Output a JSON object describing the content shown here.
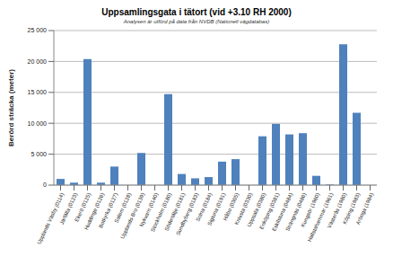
{
  "chart_data": {
    "type": "bar",
    "title": "Uppsamlingsgata i tätort (vid +3.10 RH 2000)",
    "subtitle": "Analysen är utförd på data från NVDB (Nationell vägdatabas)",
    "y_label": "Berörd sträcka (meter)",
    "categories": [
      "Upplands Väsby (0114)",
      "Järfälla (0123)",
      "Ekerö (0125)",
      "Huddinge (0126)",
      "Botkyrka (0127)",
      "Salem (0128)",
      "Upplands-Bro (0139)",
      "Nykvarn (0140)",
      "Stockholm (0180)",
      "Södertälje (0181)",
      "Sundbyberg (0183)",
      "Solna (0184)",
      "Sigtuna (0191)",
      "Håbo (0305)",
      "Knivsta (0330)",
      "Uppsala (0380)",
      "Enköping (0381)",
      "Eskilstuna (0484)",
      "Strängnäs (0486)",
      "Kungsör (1960)",
      "Hallstahammar (1961)",
      "Västerås (1980)",
      "Köping (1983)",
      "Arboga (1984)"
    ],
    "values": [
      1000,
      400,
      20400,
      400,
      3000,
      0,
      5200,
      0,
      14700,
      1800,
      1100,
      1300,
      3800,
      4200,
      0,
      7900,
      9900,
      8200,
      8400,
      1500,
      100,
      22800,
      11700,
      0
    ],
    "color": "#4f81bd",
    "ylim": [
      0,
      25000
    ],
    "yticks": [
      0,
      {
        "value": 5000,
        "label": "5 000"
      },
      {
        "value": 10000,
        "label": "10 000"
      },
      {
        "value": 15000,
        "label": "15 000"
      },
      {
        "value": 20000,
        "label": "20 000"
      },
      {
        "value": 25000,
        "label": "25 000"
      }
    ],
    "grid": true
  }
}
